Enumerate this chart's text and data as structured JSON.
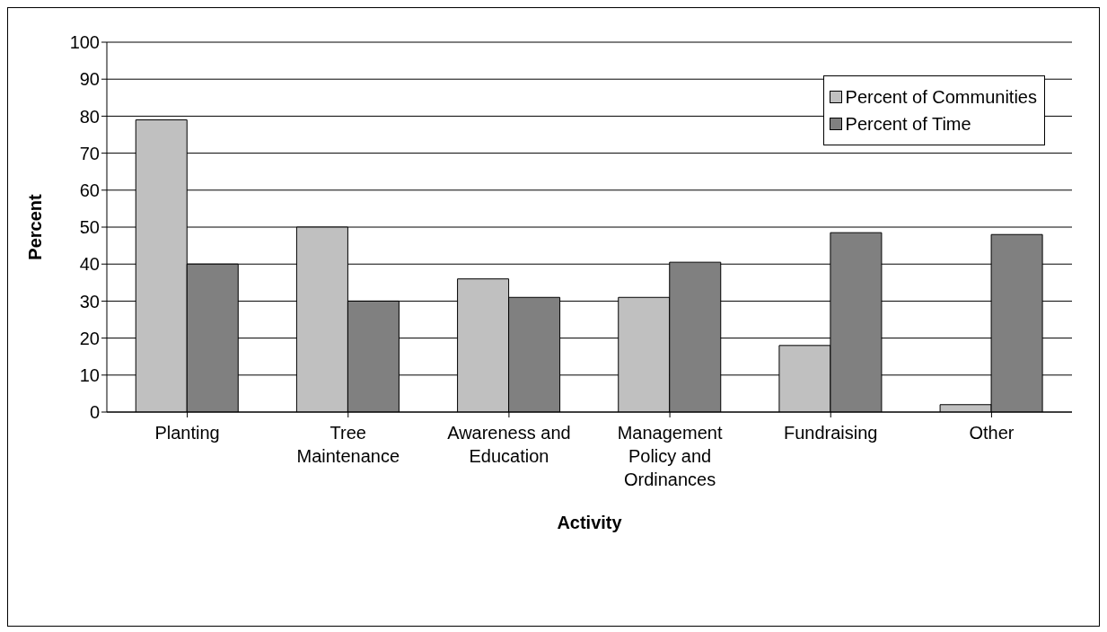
{
  "chart_data": {
    "type": "bar",
    "xlabel": "Activity",
    "ylabel": "Percent",
    "categories": [
      "Planting",
      "Tree Maintenance",
      "Awareness and Education",
      "Management Policy and Ordinances",
      "Fundraising",
      "Other"
    ],
    "series": [
      {
        "name": "Percent of Communities",
        "color": "#c0c0c0",
        "values": [
          79,
          50,
          36,
          31,
          18,
          2
        ]
      },
      {
        "name": "Percent of Time",
        "color": "#808080",
        "values": [
          40,
          30,
          31,
          40.5,
          48.5,
          48
        ]
      }
    ],
    "ylim": [
      0,
      100
    ],
    "yticks": [
      0,
      10,
      20,
      30,
      40,
      50,
      60,
      70,
      80,
      90,
      100
    ],
    "grid": "y",
    "legend": "top right"
  }
}
